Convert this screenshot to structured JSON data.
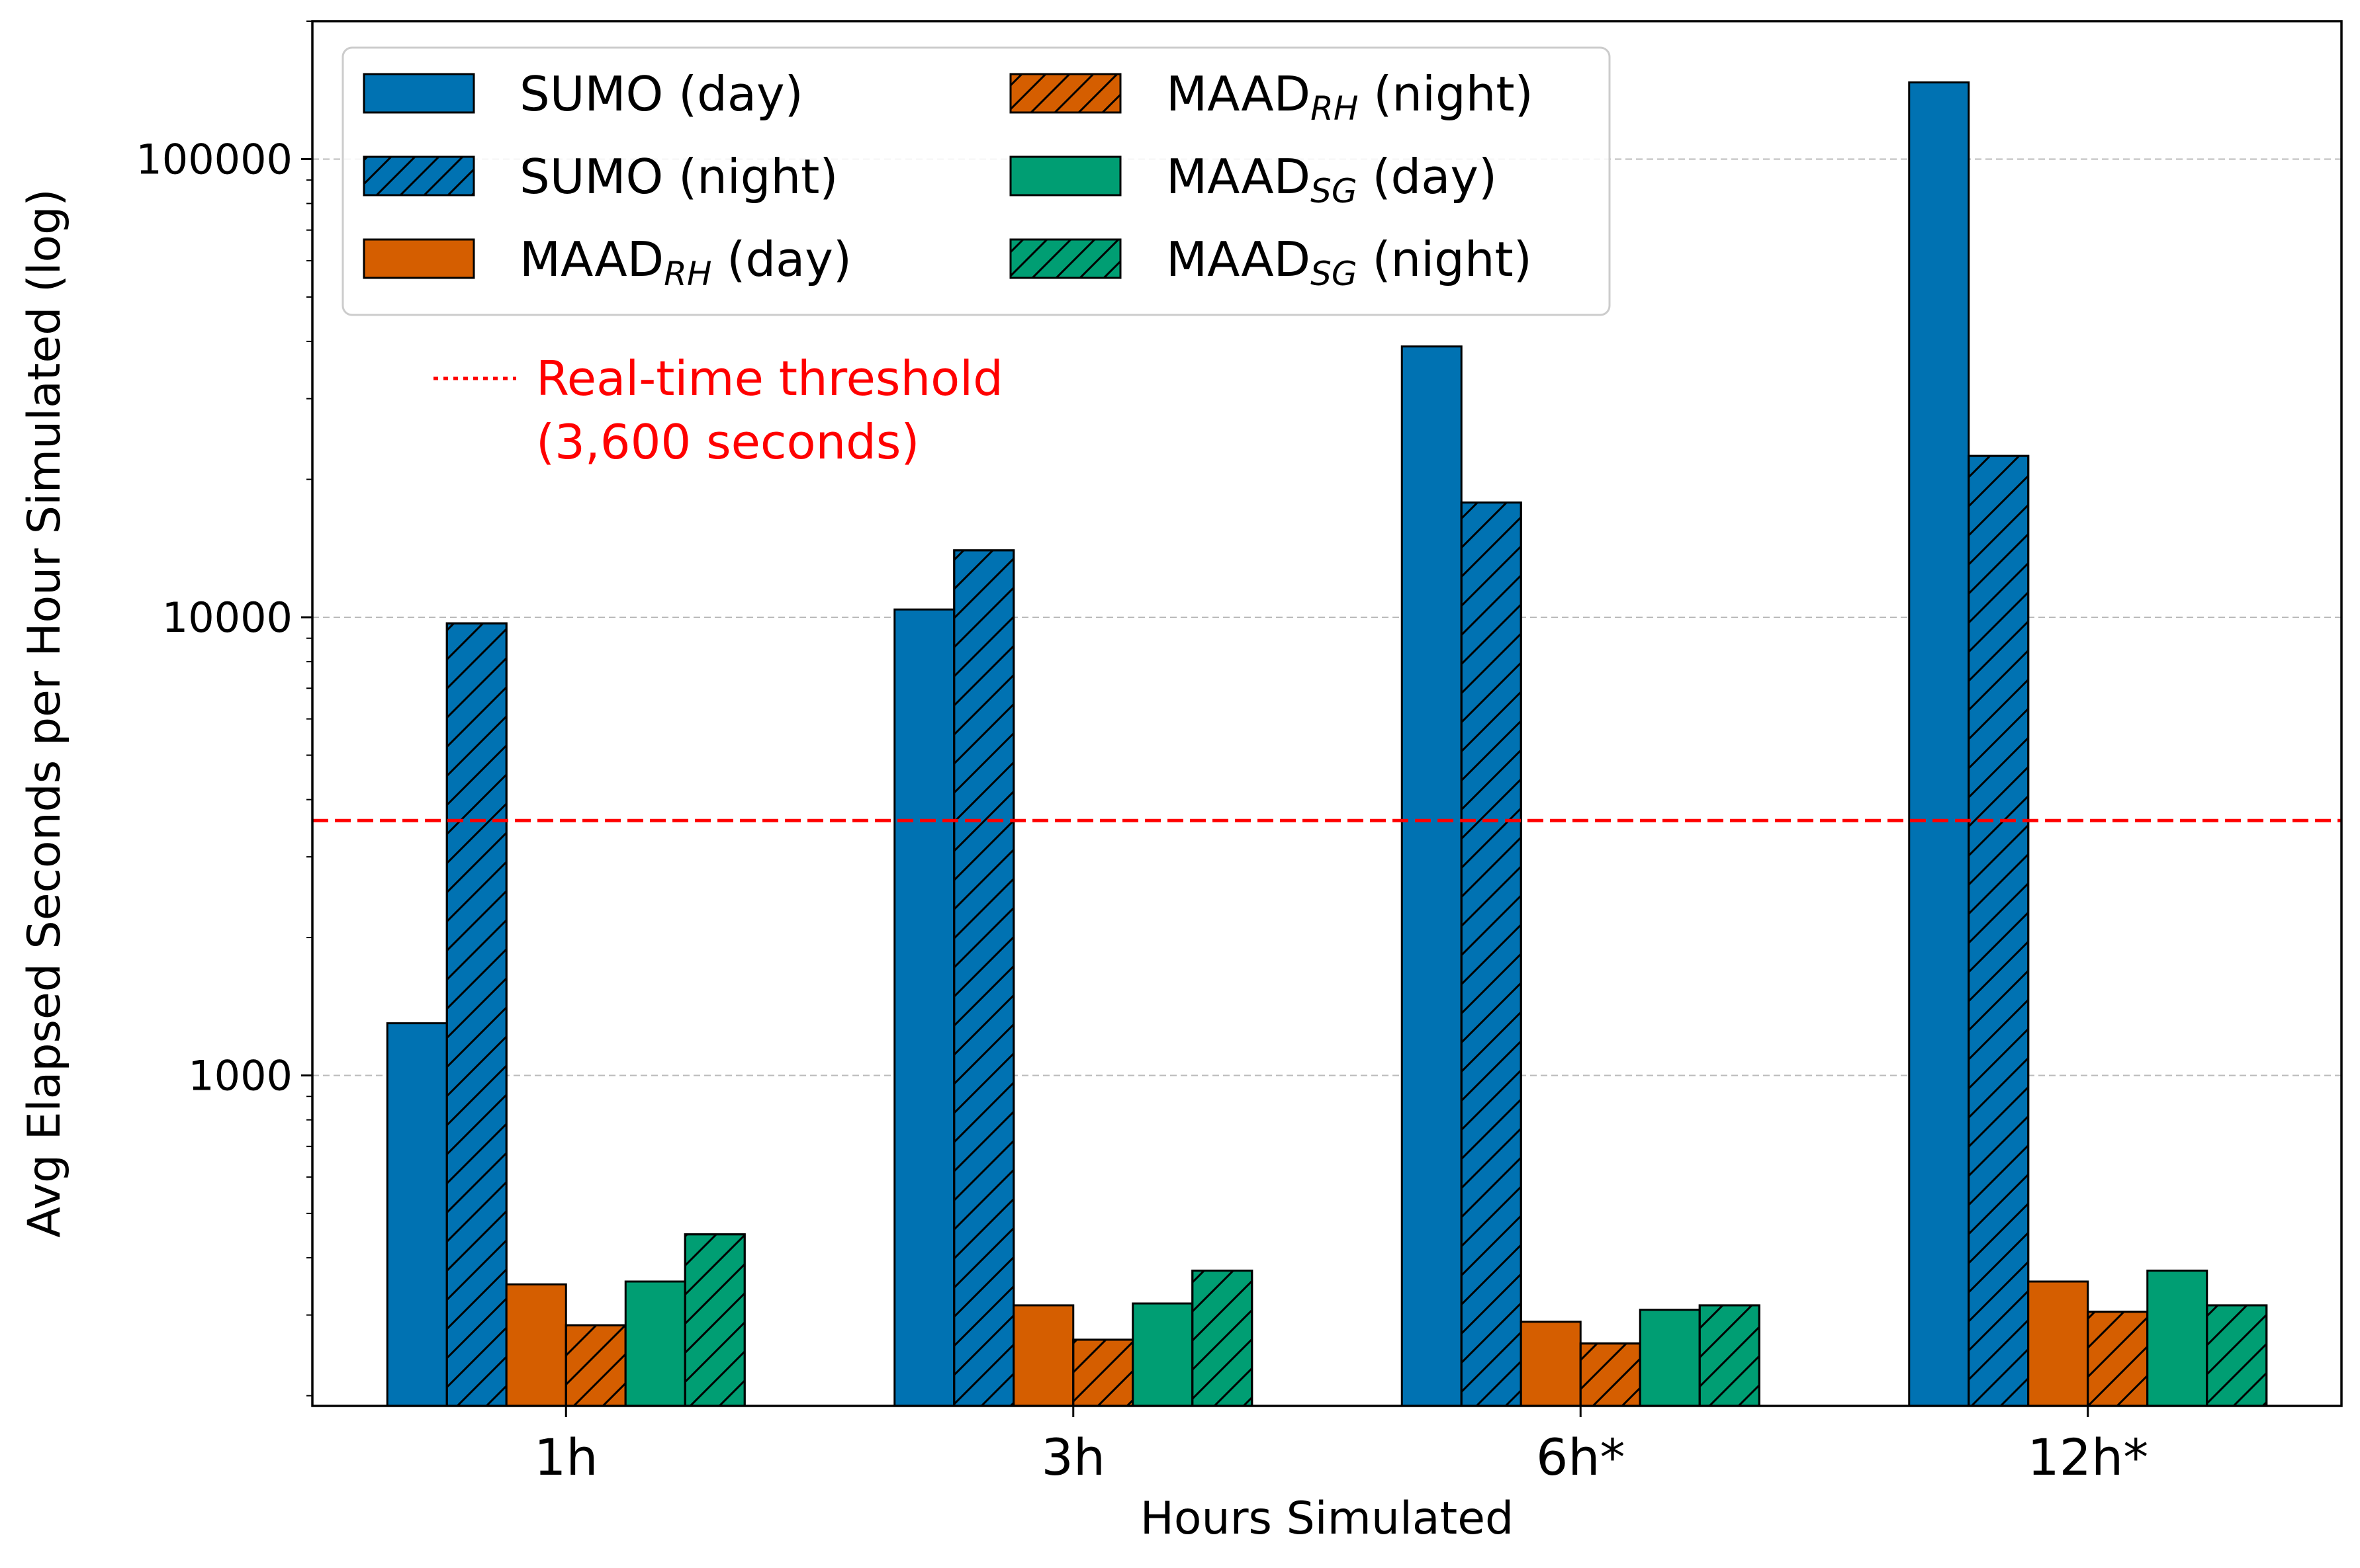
{
  "chart_data": {
    "type": "bar",
    "xlabel": "Hours Simulated",
    "ylabel": "Avg Elapsed Seconds per Hour Simulated (log)",
    "yscale": "log",
    "ylim": [
      190,
      200000
    ],
    "yticks": [
      1000,
      10000,
      100000
    ],
    "ytick_labels": [
      "1000",
      "10000",
      "100000"
    ],
    "grid": "y, dashed",
    "legend_position": "top-left",
    "legend_columns": 2,
    "categories": [
      "1h",
      "3h",
      "6h*",
      "12h*"
    ],
    "series": [
      {
        "name": "SUMO (day)",
        "name_main": "SUMO (day)",
        "name_sub": "",
        "name_tail": "",
        "color": "#0072b2",
        "hatch": false,
        "values": [
          1300,
          10400,
          39000,
          147000
        ]
      },
      {
        "name": "SUMO (night)",
        "name_main": "SUMO (night)",
        "name_sub": "",
        "name_tail": "",
        "color": "#0072b2",
        "hatch": true,
        "values": [
          9700,
          14000,
          17800,
          22500
        ]
      },
      {
        "name": "MAADRH (day)",
        "name_main": "MAAD",
        "name_sub": "RH",
        "name_tail": " (day)",
        "color": "#d55e00",
        "hatch": false,
        "values": [
          350,
          315,
          290,
          355
        ]
      },
      {
        "name": "MAADRH (night)",
        "name_main": "MAAD",
        "name_sub": "RH",
        "name_tail": " (night)",
        "color": "#d55e00",
        "hatch": true,
        "values": [
          285,
          265,
          260,
          305
        ]
      },
      {
        "name": "MAADSG (day)",
        "name_main": "MAAD",
        "name_sub": "SG",
        "name_tail": " (day)",
        "color": "#009e73",
        "hatch": false,
        "values": [
          355,
          318,
          308,
          375
        ]
      },
      {
        "name": "MAADSG (night)",
        "name_main": "MAAD",
        "name_sub": "SG",
        "name_tail": " (night)",
        "color": "#009e73",
        "hatch": true,
        "values": [
          450,
          375,
          315,
          315
        ]
      }
    ],
    "reference_line": {
      "value": 3600,
      "color": "#ff0000",
      "style": "dashed",
      "label_line1": "Real-time threshold",
      "label_line2": "(3,600 seconds)"
    }
  }
}
